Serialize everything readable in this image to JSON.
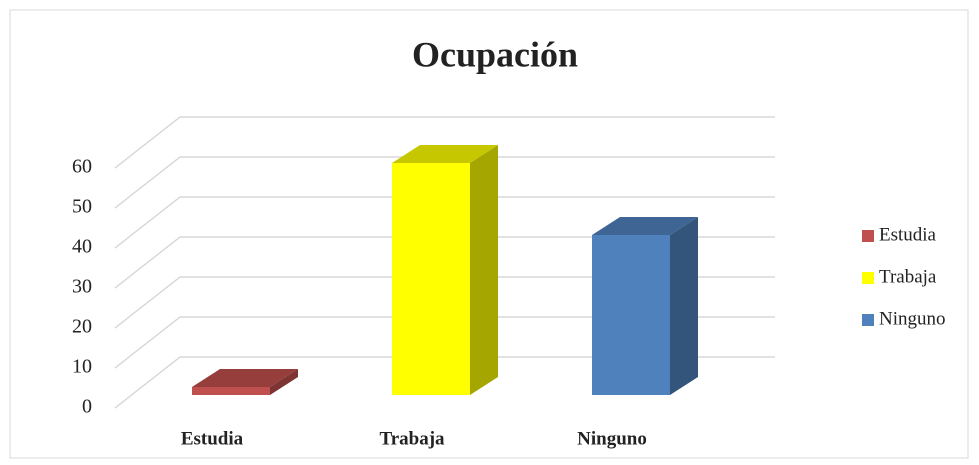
{
  "chart_data": {
    "type": "bar3d",
    "title": "Ocupación",
    "categories": [
      "Estudia",
      "Trabaja",
      "Ninguno"
    ],
    "values": [
      2,
      58,
      40
    ],
    "colors": [
      "#c0504d",
      "#ffff00",
      "#4f81bd"
    ],
    "ylim": [
      0,
      60
    ],
    "yticks": [
      0,
      10,
      20,
      30,
      40,
      50,
      60
    ],
    "grid": true,
    "legend": "right"
  }
}
